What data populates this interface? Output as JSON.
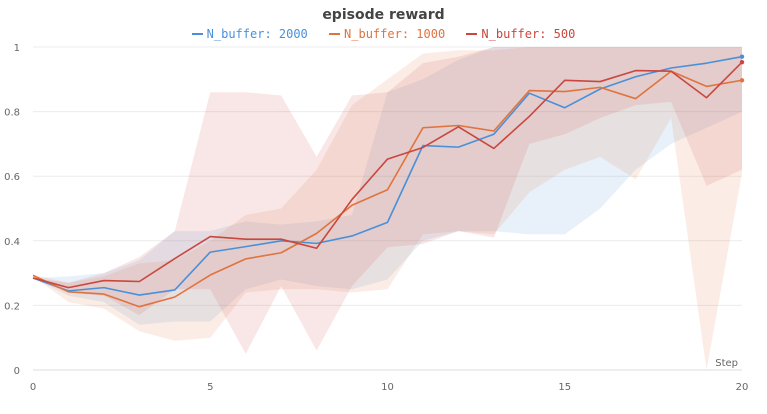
{
  "chart_data": {
    "type": "line",
    "title": "episode reward",
    "xlabel": "Step",
    "ylabel": "",
    "xlim": [
      0,
      20
    ],
    "ylim": [
      0,
      1
    ],
    "xticks": [
      "0",
      "5",
      "10",
      "15",
      "20"
    ],
    "yticks": [
      "0",
      "0.2",
      "0.4",
      "0.6",
      "0.8",
      "1"
    ],
    "grid": true,
    "legend_position": "top-center",
    "x": [
      0,
      1,
      2,
      3,
      4,
      5,
      6,
      7,
      8,
      9,
      10,
      11,
      12,
      13,
      14,
      15,
      16,
      17,
      18,
      19,
      20
    ],
    "series": [
      {
        "name": "N_buffer: 2000",
        "color": "#4a90d9",
        "values": [
          0.285,
          0.245,
          0.255,
          0.232,
          0.248,
          0.365,
          0.382,
          0.4,
          0.392,
          0.415,
          0.457,
          0.695,
          0.69,
          0.73,
          0.857,
          0.812,
          0.87,
          0.908,
          0.935,
          0.95,
          0.97
        ],
        "band_upper": [
          0.285,
          0.29,
          0.3,
          0.34,
          0.43,
          0.43,
          0.46,
          0.45,
          0.46,
          0.48,
          0.86,
          0.9,
          0.96,
          1.0,
          1.0,
          1.0,
          1.0,
          1.0,
          1.0,
          1.0,
          1.0
        ],
        "band_lower": [
          0.285,
          0.23,
          0.21,
          0.14,
          0.15,
          0.15,
          0.25,
          0.28,
          0.26,
          0.25,
          0.28,
          0.4,
          0.43,
          0.43,
          0.42,
          0.42,
          0.5,
          0.62,
          0.7,
          0.75,
          0.8
        ]
      },
      {
        "name": "N_buffer: 1000",
        "color": "#e0733e",
        "values": [
          0.293,
          0.242,
          0.235,
          0.196,
          0.226,
          0.294,
          0.344,
          0.363,
          0.423,
          0.51,
          0.558,
          0.75,
          0.757,
          0.74,
          0.865,
          0.862,
          0.875,
          0.84,
          0.925,
          0.878,
          0.897
        ],
        "band_upper": [
          0.295,
          0.27,
          0.29,
          0.33,
          0.34,
          0.4,
          0.48,
          0.5,
          0.62,
          0.82,
          0.9,
          0.98,
          0.99,
          0.99,
          1.0,
          1.0,
          1.0,
          1.0,
          1.0,
          1.0,
          1.0
        ],
        "band_lower": [
          0.29,
          0.21,
          0.19,
          0.12,
          0.09,
          0.1,
          0.24,
          0.25,
          0.25,
          0.24,
          0.25,
          0.42,
          0.43,
          0.42,
          0.55,
          0.62,
          0.66,
          0.59,
          0.78,
          0.0,
          0.61
        ]
      },
      {
        "name": "N_buffer: 500",
        "color": "#c9473f",
        "values": [
          0.285,
          0.255,
          0.277,
          0.274,
          0.345,
          0.413,
          0.405,
          0.405,
          0.377,
          0.528,
          0.653,
          0.689,
          0.753,
          0.686,
          0.785,
          0.897,
          0.893,
          0.927,
          0.925,
          0.843,
          0.953
        ],
        "band_upper": [
          0.285,
          0.27,
          0.3,
          0.35,
          0.43,
          0.86,
          0.86,
          0.85,
          0.66,
          0.85,
          0.86,
          0.95,
          0.97,
          1.0,
          1.0,
          1.0,
          1.0,
          1.0,
          1.0,
          1.0,
          1.0
        ],
        "band_lower": [
          0.285,
          0.24,
          0.23,
          0.17,
          0.25,
          0.25,
          0.05,
          0.26,
          0.06,
          0.26,
          0.38,
          0.39,
          0.43,
          0.41,
          0.7,
          0.73,
          0.78,
          0.82,
          0.83,
          0.57,
          0.62
        ]
      }
    ]
  }
}
